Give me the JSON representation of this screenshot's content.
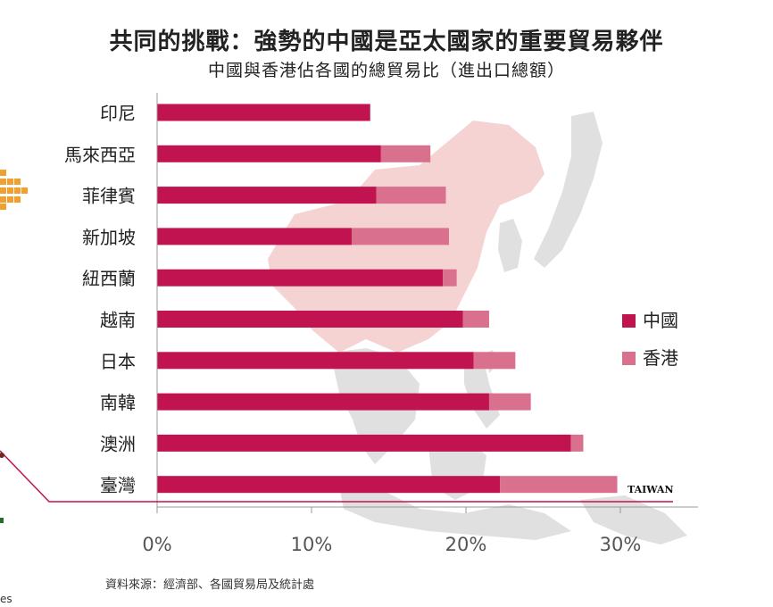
{
  "header": {
    "title": "共同的挑戰：強勢的中國是亞太國家的重要貿易夥伴",
    "subtitle": "中國與香港佔各國的總貿易比（進出口總額）"
  },
  "footer": {
    "source": "資料來源：經濟部、各國貿易局及統計處",
    "corner_text": "es"
  },
  "annotations": {
    "taiwan_label": "TAIWAN"
  },
  "colors": {
    "china": "#c0134f",
    "hongkong": "#d9708e",
    "map": "#d5d5d5",
    "china_map": "#f2c4c4",
    "baseline": "#c0134f"
  },
  "chart_data": {
    "type": "bar",
    "orientation": "horizontal",
    "stacked": true,
    "categories": [
      "印尼",
      "馬來西亞",
      "菲律賓",
      "新加坡",
      "紐西蘭",
      "越南",
      "日本",
      "南韓",
      "澳洲",
      "臺灣"
    ],
    "series": [
      {
        "name": "中國",
        "values": [
          13.8,
          14.5,
          14.2,
          12.6,
          18.5,
          19.8,
          20.5,
          21.5,
          26.8,
          22.2
        ]
      },
      {
        "name": "香港",
        "values": [
          0.0,
          3.2,
          4.5,
          6.3,
          0.9,
          1.7,
          2.7,
          2.7,
          0.8,
          7.6
        ]
      }
    ],
    "xlim": [
      0,
      35
    ],
    "x_ticks": [
      "0%",
      "10%",
      "20%",
      "30%"
    ],
    "x_tick_values": [
      0,
      10,
      20,
      30
    ],
    "legend": "right",
    "grid": false
  }
}
